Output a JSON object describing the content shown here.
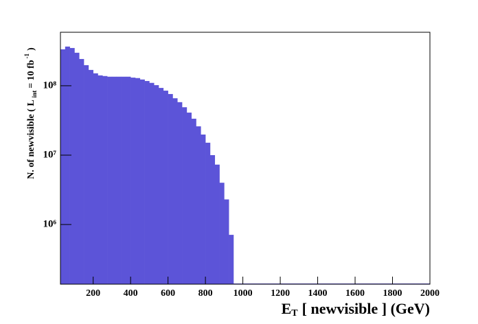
{
  "chart_data": {
    "type": "histogram",
    "x_label": "E",
    "x_label_sub": "T",
    "x_label_rest": "[ newvisible ] (GeV)",
    "y_label": "N. of newvisible ( L",
    "y_label_sub": "int",
    "y_label_mid": "= 10 fb",
    "y_label_sup": "-1",
    "y_label_end": ")",
    "color": "#5c54d8",
    "log_y": true,
    "bins": [
      25,
      50,
      75,
      100,
      125,
      150,
      175,
      200,
      225,
      250,
      275,
      300,
      325,
      350,
      375,
      400,
      425,
      450,
      475,
      500,
      525,
      550,
      575,
      600,
      625,
      650,
      675,
      700,
      725,
      750,
      775,
      800,
      825,
      850,
      875,
      900,
      925,
      950,
      975,
      1000,
      1025,
      1050,
      1075,
      1100,
      1125,
      1150,
      1175,
      1200,
      1225,
      1250,
      1275,
      1300,
      1325,
      1350,
      1375,
      1400,
      1425,
      1450,
      1475,
      1500,
      1525,
      1550,
      1575,
      1600,
      1625,
      1650,
      1675,
      1700,
      1725,
      1750,
      1775,
      1800,
      1825,
      1850,
      1875,
      1900,
      1925,
      1950,
      1975,
      2000
    ],
    "values": [
      335000000,
      367000000,
      350000000,
      299000000,
      243000000,
      198000000,
      169000000,
      151000000,
      141000000,
      138000000,
      135000000,
      135000000,
      135000000,
      135000000,
      135000000,
      131000000,
      129000000,
      123000000,
      117000000,
      110000000,
      102000000,
      93000000,
      85000000,
      76000000,
      66000000,
      58000000,
      49000000,
      41000000,
      33500000,
      26000000,
      19800000,
      15100000,
      10000000,
      7300000,
      4000000,
      2300000,
      710000,
      0,
      0,
      0,
      0,
      0,
      0,
      0,
      0,
      0,
      0,
      0,
      0,
      0,
      0,
      0,
      0,
      0,
      0,
      0,
      0,
      0,
      0,
      0,
      0,
      0,
      0,
      0,
      0,
      0,
      0,
      0,
      0,
      0,
      0,
      0,
      0,
      0,
      0,
      0,
      0,
      0,
      0
    ],
    "xlim": [
      25,
      2000
    ],
    "ylim": [
      138000,
      590000000
    ],
    "xticks": [
      200,
      400,
      600,
      800,
      1000,
      1200,
      1400,
      1600,
      1800,
      2000
    ],
    "yticks": [
      {
        "value": 1000000,
        "label": "10⁶"
      },
      {
        "value": 10000000,
        "label": "10⁷"
      },
      {
        "value": 100000000,
        "label": "10⁸"
      }
    ]
  }
}
